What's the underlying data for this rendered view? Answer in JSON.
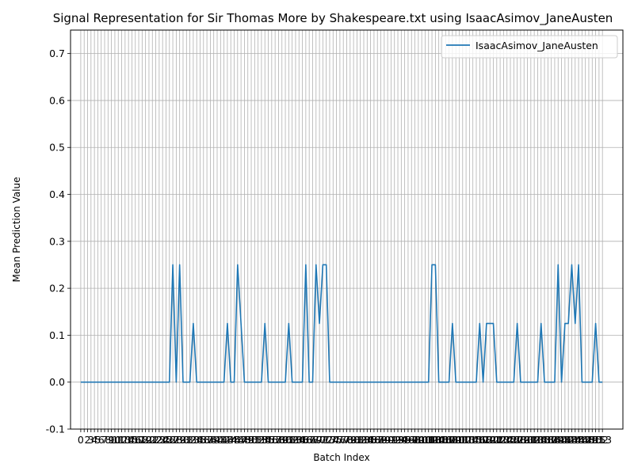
{
  "chart_data": {
    "type": "line",
    "title": "Signal Representation for Sir Thomas More by Shakespeare.txt using IsaacAsimov_JaneAusten",
    "xlabel": "Batch Index",
    "ylabel": "Mean Prediction Value",
    "xlim": [
      -3,
      159
    ],
    "ylim": [
      -0.1,
      0.75
    ],
    "yticks": [
      -0.1,
      0.0,
      0.1,
      0.2,
      0.3,
      0.4,
      0.5,
      0.6,
      0.7
    ],
    "grid": true,
    "legend_position": "top-right",
    "series": [
      {
        "name": "IsaacAsimov_JaneAusten",
        "color": "#1f77b4",
        "x": [
          0,
          1,
          2,
          3,
          4,
          5,
          6,
          7,
          8,
          9,
          10,
          11,
          12,
          13,
          14,
          15,
          16,
          17,
          18,
          19,
          20,
          21,
          22,
          23,
          24,
          25,
          26,
          27,
          28,
          29,
          30,
          31,
          32,
          33,
          34,
          35,
          36,
          37,
          38,
          39,
          40,
          41,
          42,
          43,
          44,
          45,
          46,
          47,
          48,
          49,
          50,
          51,
          52,
          53,
          54,
          55,
          56,
          57,
          58,
          59,
          60,
          61,
          62,
          63,
          64,
          65,
          66,
          67,
          68,
          69,
          70,
          71,
          72,
          73,
          74,
          75,
          76,
          77,
          78,
          79,
          80,
          81,
          82,
          83,
          84,
          85,
          86,
          87,
          88,
          89,
          90,
          91,
          92,
          93,
          94,
          95,
          96,
          97,
          98,
          99,
          100,
          101,
          102,
          103,
          104,
          105,
          106,
          107,
          108,
          109,
          110,
          111,
          112,
          113,
          114,
          115,
          116,
          117,
          118,
          119,
          120,
          121,
          122,
          123,
          124,
          125,
          126,
          127,
          128,
          129,
          130,
          131,
          132,
          133,
          134,
          135,
          136,
          137,
          138,
          139,
          140,
          141,
          142,
          143,
          144,
          145,
          146,
          147,
          148,
          149,
          150,
          151,
          152,
          153
        ],
        "values": [
          0,
          0,
          0,
          0,
          0,
          0,
          0,
          0,
          0,
          0,
          0,
          0,
          0,
          0,
          0,
          0,
          0,
          0,
          0,
          0,
          0,
          0,
          0,
          0,
          0,
          0,
          0,
          0.25,
          0,
          0.25,
          0,
          0,
          0,
          0.125,
          0,
          0,
          0,
          0,
          0,
          0,
          0,
          0,
          0,
          0.125,
          0,
          0,
          0.25,
          0.125,
          0,
          0,
          0,
          0,
          0,
          0,
          0.125,
          0,
          0,
          0,
          0,
          0,
          0,
          0.125,
          0,
          0,
          0,
          0,
          0.25,
          0,
          0,
          0.25,
          0.125,
          0.25,
          0.25,
          0,
          0,
          0,
          0,
          0,
          0,
          0,
          0,
          0,
          0,
          0,
          0,
          0,
          0,
          0,
          0,
          0,
          0,
          0,
          0,
          0,
          0,
          0,
          0,
          0,
          0,
          0,
          0,
          0,
          0,
          0.25,
          0.25,
          0,
          0,
          0,
          0,
          0.125,
          0,
          0,
          0,
          0,
          0,
          0,
          0,
          0.125,
          0,
          0.125,
          0.125,
          0.125,
          0,
          0,
          0,
          0,
          0,
          0,
          0.125,
          0,
          0,
          0,
          0,
          0,
          0,
          0.125,
          0,
          0,
          0,
          0,
          0.25,
          0,
          0.125,
          0.125,
          0.25,
          0.125,
          0.25,
          0,
          0,
          0,
          0,
          0.125,
          0,
          0
        ]
      }
    ],
    "xtick_labels": [
      "0",
      "2",
      "3",
      "4",
      "5",
      "6",
      "7",
      "8",
      "9",
      "10",
      "11",
      "12",
      "13",
      "14",
      "15",
      "16",
      "17",
      "18",
      "19",
      "20",
      "21",
      "22",
      "23",
      "24",
      "25",
      "26",
      "27",
      "28",
      "29",
      "30",
      "31",
      "32",
      "33",
      "34",
      "35",
      "36",
      "37",
      "38",
      "39",
      "40",
      "41",
      "42",
      "43",
      "44",
      "45",
      "46",
      "47",
      "48",
      "49",
      "50",
      "51",
      "52",
      "53",
      "54",
      "55",
      "56",
      "57",
      "58",
      "59",
      "60",
      "61",
      "62",
      "63",
      "64",
      "65",
      "66",
      "67",
      "68",
      "69",
      "70",
      "71",
      "72",
      "73",
      "74",
      "75",
      "76",
      "77",
      "78",
      "79",
      "80",
      "81",
      "82",
      "83",
      "84",
      "85",
      "86",
      "87",
      "88",
      "89",
      "90",
      "91",
      "92",
      "93",
      "94",
      "95",
      "96",
      "97",
      "98",
      "99",
      "100",
      "101",
      "102",
      "103",
      "104",
      "105",
      "106",
      "107",
      "108",
      "109",
      "110",
      "111",
      "112",
      "113",
      "114",
      "115",
      "116",
      "117",
      "118",
      "119",
      "120",
      "121",
      "122",
      "123",
      "124",
      "125",
      "126",
      "127",
      "128",
      "129",
      "130",
      "131",
      "132",
      "133",
      "134",
      "135",
      "136",
      "137",
      "138",
      "139",
      "140",
      "141",
      "142",
      "143",
      "144",
      "145",
      "146",
      "147",
      "148",
      "149",
      "150",
      "151",
      "152",
      "153"
    ]
  }
}
